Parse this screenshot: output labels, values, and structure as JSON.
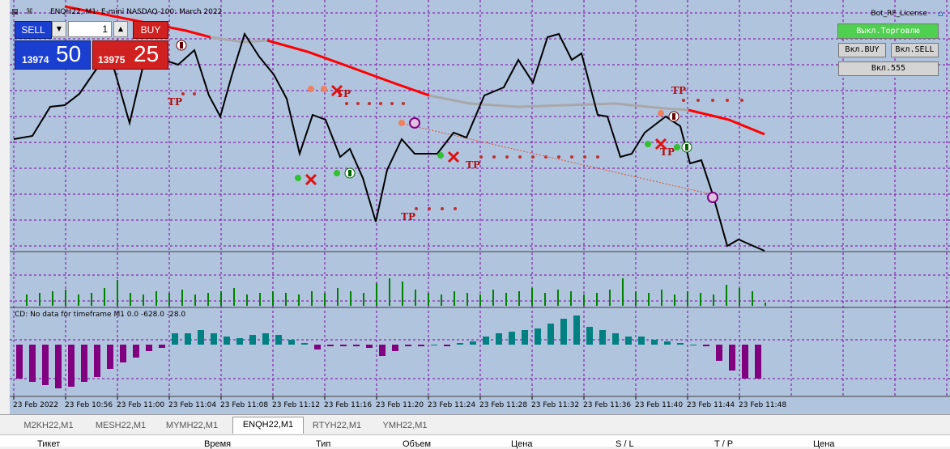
{
  "window": {
    "title": "ENQH22, M1: E-mini NASDAQ-100: March 2022",
    "bot_label": "Bot_RF_License"
  },
  "trade_panel": {
    "sell_label": "SELL",
    "buy_label": "BUY",
    "lot": "1",
    "bid_small": "13974",
    "bid_big": "50",
    "ask_small": "13975",
    "ask_big": "25"
  },
  "controls": {
    "toggle_trading": "Выкл.Торговлю",
    "enable_buy": "Вкл.BUY",
    "enable_sell": "Вкл.SELL",
    "enable_555": "Вкл.555"
  },
  "marker_labels": {
    "take_profit": "TP"
  },
  "indicator": {
    "cd_label": "CD: No data for timeframe M1 0.0 -628.0 -28.0"
  },
  "time_axis": [
    "23 Feb 2022",
    "23 Feb 10:56",
    "23 Feb 11:00",
    "23 Feb 11:04",
    "23 Feb 11:08",
    "23 Feb 11:12",
    "23 Feb 11:16",
    "23 Feb 11:20",
    "23 Feb 11:24",
    "23 Feb 11:28",
    "23 Feb 11:32",
    "23 Feb 11:36",
    "23 Feb 11:40",
    "23 Feb 11:44",
    "23 Feb 11:48"
  ],
  "tabs": [
    "M2KH22,M1",
    "MESH22,M1",
    "MYMH22,M1",
    "ENQH22,M1",
    "RTYH22,M1",
    "YMH22,M1"
  ],
  "active_tab": "ENQH22,M1",
  "table_headers": [
    "Тикет",
    "Время",
    "Тип",
    "Объем",
    "Цена",
    "S / L",
    "T / P",
    "Цена"
  ],
  "colors": {
    "chart_bg": "#b0c4de",
    "grid": "#8000a0",
    "price_line": "#000000",
    "ma_red": "#ff0000",
    "ma_gray": "#a8a8a8",
    "volume": "#008000",
    "hist_pos": "#008080",
    "hist_neg": "#800080",
    "sell_bg": "#1a3fd0",
    "buy_bg": "#d02020",
    "toggle_green": "#50d050"
  },
  "icons": [
    "window-menu-icon",
    "cart-icon",
    "chevron-down-icon",
    "chevron-up-icon",
    "cap-icon",
    "close-x-icon",
    "arrow-marker-icon"
  ]
}
